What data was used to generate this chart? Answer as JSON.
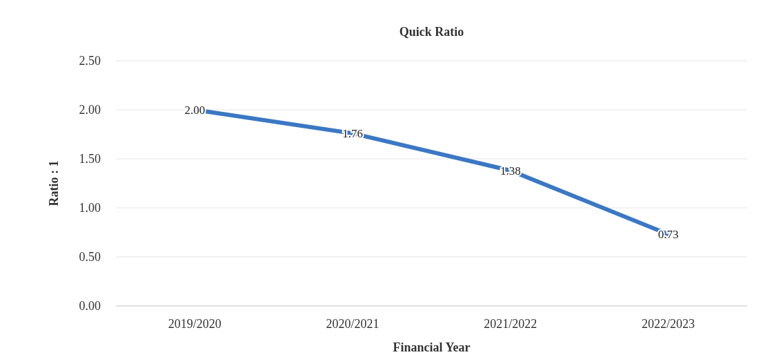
{
  "chart_data": {
    "type": "line",
    "title": "Quick Ratio",
    "xlabel": "Financial Year",
    "ylabel": "Ratio : 1",
    "categories": [
      "2019/2020",
      "2020/2021",
      "2021/2022",
      "2022/2023"
    ],
    "series": [
      {
        "color": "#3b78c4",
        "values": [
          2.0,
          1.76,
          1.38,
          0.73
        ],
        "value_labels": [
          "2.00",
          "1.76",
          "1.38",
          "0.73"
        ]
      }
    ],
    "ylim": [
      0,
      2.5
    ],
    "yticks": [
      {
        "value": 0,
        "label": "0.00"
      },
      {
        "value": 0.5,
        "label": "0.50"
      },
      {
        "value": 1,
        "label": "1.00"
      },
      {
        "value": 1.5,
        "label": "1.50"
      },
      {
        "value": 2,
        "label": "2.00"
      },
      {
        "value": 2.5,
        "label": "2.50"
      }
    ],
    "grid": "y",
    "marker": "none",
    "line_style": "solid"
  }
}
